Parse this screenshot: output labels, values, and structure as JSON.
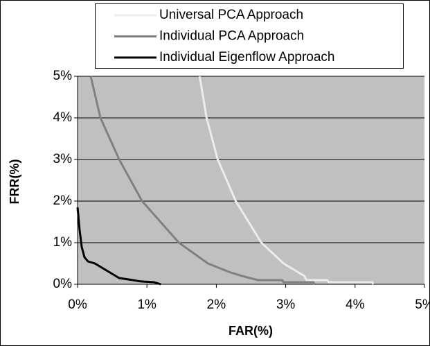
{
  "chart_data": {
    "type": "line",
    "x_label": "FAR(%)",
    "y_label": "FRR(%)",
    "xlim": [
      0,
      5
    ],
    "ylim": [
      0,
      5
    ],
    "xticks": [
      {
        "value": 0,
        "label": "0%"
      },
      {
        "value": 1,
        "label": "1%"
      },
      {
        "value": 2,
        "label": "2%"
      },
      {
        "value": 3,
        "label": "3%"
      },
      {
        "value": 4,
        "label": "4%"
      },
      {
        "value": 5,
        "label": "5%"
      }
    ],
    "yticks": [
      {
        "value": 0,
        "label": "0%"
      },
      {
        "value": 1,
        "label": "1%"
      },
      {
        "value": 2,
        "label": "2%"
      },
      {
        "value": 3,
        "label": "3%"
      },
      {
        "value": 4,
        "label": "4%"
      },
      {
        "value": 5,
        "label": "5%"
      }
    ],
    "grid": true,
    "legend": "top",
    "series": [
      {
        "name": "Universal PCA Approach",
        "color": "#ececec",
        "x": [
          1.76,
          1.86,
          2.02,
          2.28,
          2.65,
          2.97,
          3.27,
          3.3,
          3.6,
          3.62,
          4.25,
          4.26
        ],
        "values": [
          5,
          4,
          3,
          2,
          1,
          0.5,
          0.2,
          0.1,
          0.1,
          0.05,
          0.05,
          0
        ]
      },
      {
        "name": "Individual PCA Approach",
        "color": "#808080",
        "x": [
          0.19,
          0.33,
          0.6,
          0.93,
          1.46,
          1.88,
          2.18,
          2.37,
          2.6,
          2.95,
          2.97,
          3.4,
          3.41
        ],
        "values": [
          5,
          4,
          3,
          2,
          1,
          0.5,
          0.3,
          0.2,
          0.1,
          0.1,
          0.05,
          0.05,
          0
        ]
      },
      {
        "name": "Individual Eigenflow Approach",
        "color": "#000000",
        "x": [
          0,
          0.03,
          0.06,
          0.1,
          0.15,
          0.25,
          0.4,
          0.5,
          0.6,
          0.8,
          0.9,
          1.1,
          1.2
        ],
        "values": [
          1.85,
          1.3,
          0.9,
          0.65,
          0.55,
          0.5,
          0.35,
          0.25,
          0.15,
          0.1,
          0.07,
          0.05,
          0
        ]
      }
    ]
  }
}
